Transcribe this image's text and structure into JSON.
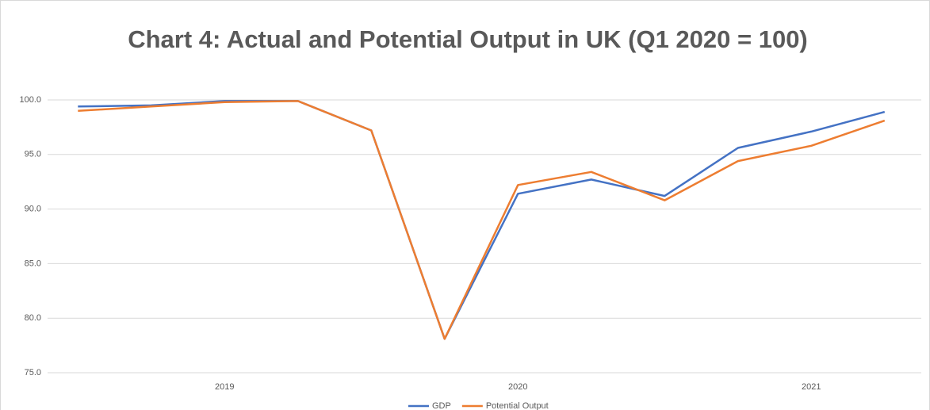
{
  "chart_data": {
    "type": "line",
    "title": "Chart 4: Actual and Potential Output in UK (Q1 2020 = 100)",
    "categories": [
      null,
      null,
      "2019",
      null,
      null,
      null,
      "2020",
      null,
      null,
      null,
      "2021",
      null
    ],
    "series": [
      {
        "name": "GDP",
        "color": "#4472c4",
        "values": [
          99.4,
          99.5,
          99.9,
          99.9,
          97.2,
          78.1,
          91.4,
          92.7,
          91.2,
          95.6,
          97.1,
          98.9
        ]
      },
      {
        "name": "Potential Output",
        "color": "#ed7d31",
        "values": [
          99.0,
          99.4,
          99.8,
          99.9,
          97.2,
          78.1,
          92.2,
          93.4,
          90.8,
          94.4,
          95.8,
          98.1
        ]
      }
    ],
    "ylim": [
      75,
      100
    ],
    "yticks": [
      {
        "value": 75,
        "label": "75.0"
      },
      {
        "value": 80,
        "label": "80.0"
      },
      {
        "value": 85,
        "label": "85.0"
      },
      {
        "value": 90,
        "label": "90.0"
      },
      {
        "value": 95,
        "label": "95.0"
      },
      {
        "value": 100,
        "label": "100.0"
      }
    ],
    "grid": true,
    "legend": "bottom"
  }
}
